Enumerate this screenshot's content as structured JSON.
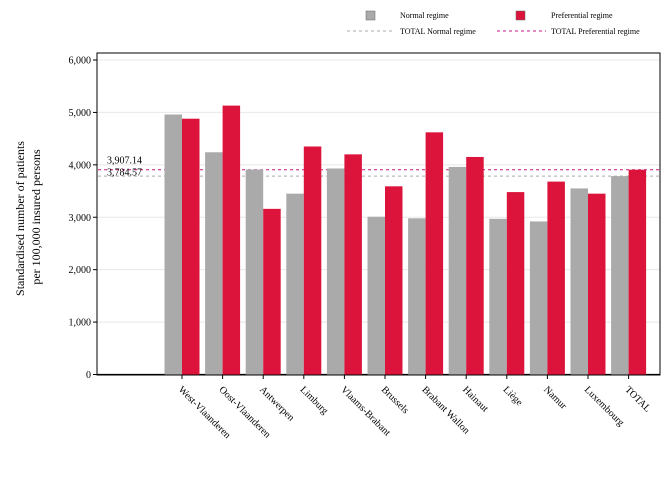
{
  "chart_data": {
    "type": "bar",
    "ylabel_lines": [
      "Standardised number of patients",
      "per 100,000 insured persons"
    ],
    "ylim": [
      0,
      6000
    ],
    "yticks": [
      0,
      1000,
      2000,
      3000,
      4000,
      5000,
      6000
    ],
    "ytick_labels": [
      "0",
      "1,000",
      "2,000",
      "3,000",
      "4,000",
      "5,000",
      "6,000"
    ],
    "grid": true,
    "legend_position": "top",
    "categories": [
      "West-Vlaanderen",
      "Oost-Vlaanderen",
      "Antwerpen",
      "Limburg",
      "Vlaams-Brabant",
      "Brussels",
      "Brabant Wallon",
      "Hainaut",
      "Liège",
      "Namur",
      "Luxembourg",
      "TOTAL"
    ],
    "series": [
      {
        "name": "Normal regime",
        "color": "#aaaaaa",
        "values": [
          4960,
          4240,
          3910,
          3450,
          3930,
          3010,
          2980,
          3960,
          2970,
          2920,
          3550,
          3784.57
        ]
      },
      {
        "name": "Preferential regime",
        "color": "#dc143c",
        "values": [
          4880,
          5130,
          3160,
          4350,
          4200,
          3590,
          4620,
          4150,
          3480,
          3680,
          3450,
          3907.14
        ]
      }
    ],
    "reference_lines": [
      {
        "name": "TOTAL Normal regime",
        "value": 3784.57,
        "label": "3,784.57",
        "color": "#aaaaaa"
      },
      {
        "name": "TOTAL Preferential regime",
        "value": 3907.14,
        "label": "3,907.14",
        "color": "#c71585"
      }
    ]
  }
}
